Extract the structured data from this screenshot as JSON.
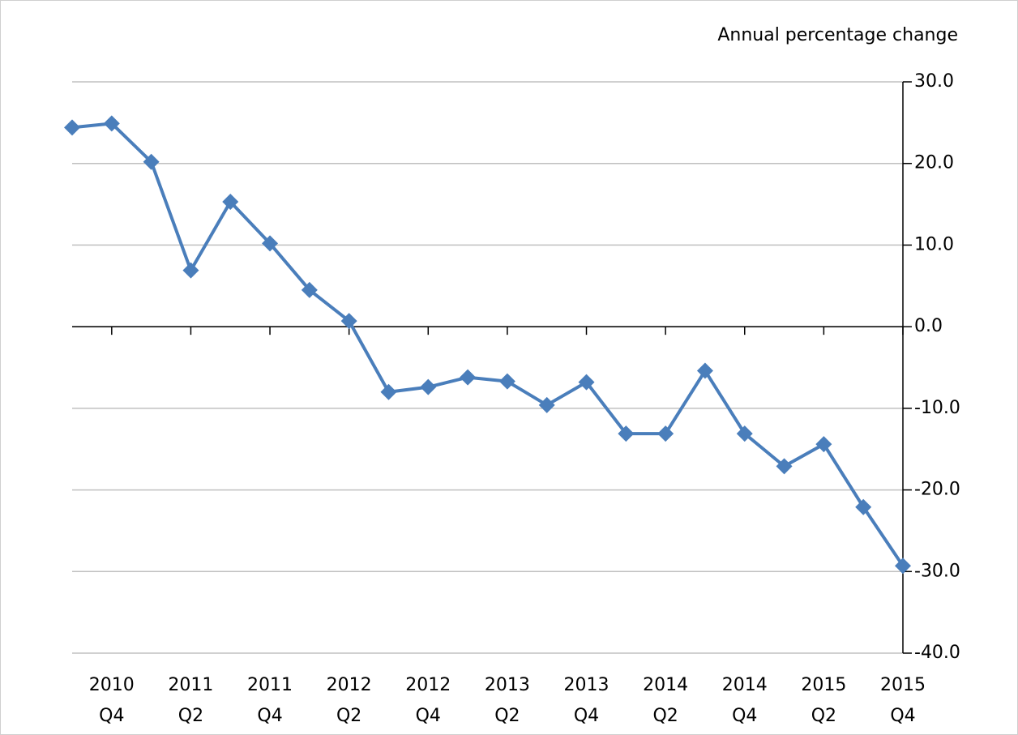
{
  "chart_data": {
    "type": "line",
    "y_axis_title": "Annual percentage change",
    "categories": [
      null,
      "2010\nQ4",
      null,
      "2011\nQ2",
      null,
      "2011\nQ4",
      null,
      "2012\nQ2",
      null,
      "2012\nQ4",
      null,
      "2013\nQ2",
      null,
      "2013\nQ4",
      null,
      "2014\nQ2",
      null,
      "2014\nQ4",
      null,
      "2015\nQ2",
      null,
      "2015\nQ4"
    ],
    "series": [
      {
        "color": "#4a7ebb",
        "values": [
          24.4,
          24.9,
          20.2,
          6.9,
          15.3,
          10.2,
          4.5,
          0.7,
          -8.0,
          -7.4,
          -6.2,
          -6.7,
          -9.6,
          -6.8,
          -13.1,
          -13.1,
          -5.4,
          -13.1,
          -17.1,
          -14.4,
          -22.1,
          -29.3
        ]
      }
    ],
    "ylim": [
      -40,
      30
    ],
    "yticks": [
      {
        "value": 30,
        "label": "30.0"
      },
      {
        "value": 20,
        "label": "20.0"
      },
      {
        "value": 10,
        "label": "10.0"
      },
      {
        "value": 0,
        "label": "0.0"
      },
      {
        "value": -10,
        "label": "-10.0"
      },
      {
        "value": -20,
        "label": "-20.0"
      },
      {
        "value": -30,
        "label": "-30.0"
      },
      {
        "value": -40,
        "label": "-40.0"
      }
    ],
    "grid": true
  }
}
